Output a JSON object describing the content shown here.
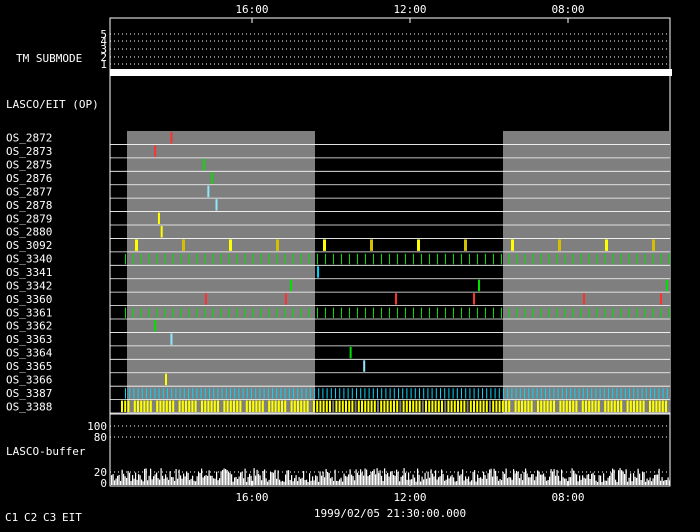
{
  "time_axis": {
    "top_ticks": [
      "16:00",
      "12:00",
      "08:00"
    ],
    "bottom_ticks": [
      "16:00",
      "12:00",
      "08:00"
    ],
    "timestamp": "1999/02/05 21:30:00.000"
  },
  "tm_submode": {
    "label": "TM SUBMODE",
    "levels": [
      "5",
      "4",
      "3",
      "2",
      "1"
    ],
    "active_level": "1"
  },
  "lasco_eit_label": "LASCO/EIT (OP)",
  "os_rows": [
    {
      "name": "OS_2872",
      "color": "#ff3030",
      "kind": "single",
      "pos": 0.08
    },
    {
      "name": "OS_2873",
      "color": "#ff3030",
      "kind": "single",
      "pos": 0.05
    },
    {
      "name": "OS_2875",
      "color": "#00e000",
      "kind": "single",
      "pos": 0.14
    },
    {
      "name": "OS_2876",
      "color": "#00e000",
      "kind": "single",
      "pos": 0.155
    },
    {
      "name": "OS_2877",
      "color": "#90e8ff",
      "kind": "single",
      "pos": 0.148
    },
    {
      "name": "OS_2878",
      "color": "#90e8ff",
      "kind": "single",
      "pos": 0.163
    },
    {
      "name": "OS_2879",
      "color": "#ffff00",
      "kind": "single",
      "pos": 0.057
    },
    {
      "name": "OS_2880",
      "color": "#ffff00",
      "kind": "single",
      "pos": 0.062
    },
    {
      "name": "OS_3092",
      "color": "#ffff00",
      "kind": "periodic"
    },
    {
      "name": "OS_3340",
      "color": "#00e000",
      "kind": "dense"
    },
    {
      "name": "OS_3341",
      "color": "#00d8ff",
      "kind": "single",
      "pos": 0.35
    },
    {
      "name": "OS_3342",
      "color": "#00e000",
      "kind": "sparse"
    },
    {
      "name": "OS_3360",
      "color": "#ff3030",
      "kind": "sparse"
    },
    {
      "name": "OS_3361",
      "color": "#00e000",
      "kind": "dense"
    },
    {
      "name": "OS_3362",
      "color": "#00e000",
      "kind": "single",
      "pos": 0.05
    },
    {
      "name": "OS_3363",
      "color": "#90e8ff",
      "kind": "single",
      "pos": 0.08
    },
    {
      "name": "OS_3364",
      "color": "#00e000",
      "kind": "single",
      "pos": 0.41
    },
    {
      "name": "OS_3365",
      "color": "#90e8ff",
      "kind": "single",
      "pos": 0.435
    },
    {
      "name": "OS_3366",
      "color": "#ffff00",
      "kind": "single",
      "pos": 0.07
    },
    {
      "name": "OS_3387",
      "color": "#00d8ff",
      "kind": "dense_tall"
    },
    {
      "name": "OS_3388",
      "color": "#ffff00",
      "kind": "bars"
    }
  ],
  "buffer": {
    "label": "LASCO-buffer",
    "upper_ticks": [
      "100",
      "80"
    ],
    "lower_ticks": [
      "20",
      "0"
    ]
  },
  "legend": [
    {
      "label": "C1",
      "color": "#ff3030"
    },
    {
      "label": "C2",
      "color": "#00e000"
    },
    {
      "label": "C3",
      "color": "#ffffff"
    },
    {
      "label": "EIT",
      "color": "#ffffff"
    }
  ]
}
